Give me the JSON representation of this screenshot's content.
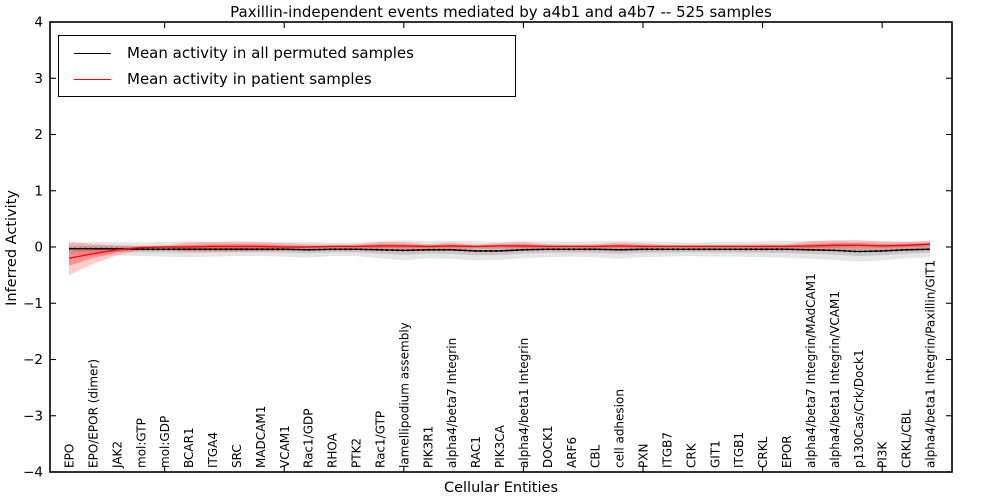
{
  "figure": {
    "title": "Paxillin-independent events mediated by a4b1 and a4b7 -- 525 samples",
    "xlabel": "Cellular Entities",
    "ylabel": "Inferred Activity",
    "legend": [
      {
        "label": "Mean activity in all permuted samples",
        "color": "#000000"
      },
      {
        "label": "Mean activity in patient samples",
        "color": "#ff0000"
      }
    ]
  },
  "chart_data": {
    "type": "line",
    "title": "Paxillin-independent events mediated by a4b1 and a4b7 -- 525 samples",
    "xlabel": "Cellular Entities",
    "ylabel": "Inferred Activity",
    "ylim": [
      -4,
      4
    ],
    "yticks": [
      4,
      3,
      2,
      1,
      0,
      -1,
      -2,
      -3,
      -4
    ],
    "ytick_labels": [
      "4",
      "3",
      "2",
      "1",
      "0",
      "−1",
      "−2",
      "−3",
      "−4"
    ],
    "xtick_indices": [
      4,
      9,
      14,
      19,
      24,
      29,
      34
    ],
    "grid": false,
    "legend_position": "upper left",
    "categories": [
      "EPO",
      "EPO/EPOR (dimer)",
      "JAK2",
      "mol:GTP",
      "mol:GDP",
      "BCAR1",
      "ITGA4",
      "SRC",
      "MADCAM1",
      "VCAM1",
      "Rac1/GDP",
      "RHOA",
      "PTK2",
      "Rac1/GTP",
      "lamellipodium assembly",
      "PIK3R1",
      "alpha4/beta7 Integrin",
      "RAC1",
      "PIK3CA",
      "alpha4/beta1 Integrin",
      "DOCK1",
      "ARF6",
      "CBL",
      "cell adhesion",
      "PXN",
      "ITGB7",
      "CRK",
      "GIT1",
      "ITGB1",
      "CRKL",
      "EPOR",
      "alpha4/beta7 Integrin/MAdCAM1",
      "alpha4/beta1 Integrin/VCAM1",
      "p130Cas/Crk/Dock1",
      "PI3K",
      "CRKL/CBL",
      "alpha4/beta1 Integrin/Paxillin/GIT1"
    ],
    "series": [
      {
        "name": "Mean activity in all permuted samples",
        "color": "#000000",
        "band_color": "#000000",
        "values": [
          -0.03,
          -0.03,
          -0.03,
          -0.04,
          -0.04,
          -0.04,
          -0.04,
          -0.04,
          -0.04,
          -0.04,
          -0.05,
          -0.04,
          -0.04,
          -0.05,
          -0.06,
          -0.05,
          -0.05,
          -0.07,
          -0.07,
          -0.05,
          -0.04,
          -0.04,
          -0.04,
          -0.05,
          -0.04,
          -0.04,
          -0.04,
          -0.04,
          -0.04,
          -0.04,
          -0.04,
          -0.05,
          -0.06,
          -0.08,
          -0.07,
          -0.05,
          -0.04
        ],
        "band_upper": [
          0.07,
          0.09,
          0.09,
          0.08,
          0.09,
          0.1,
          0.09,
          0.08,
          0.08,
          0.09,
          0.09,
          0.08,
          0.08,
          0.1,
          0.12,
          0.1,
          0.11,
          0.1,
          0.09,
          0.1,
          0.1,
          0.09,
          0.1,
          0.11,
          0.1,
          0.09,
          0.08,
          0.09,
          0.09,
          0.1,
          0.11,
          0.11,
          0.11,
          0.1,
          0.1,
          0.1,
          0.1
        ],
        "band_lower": [
          -0.13,
          -0.15,
          -0.15,
          -0.16,
          -0.17,
          -0.18,
          -0.17,
          -0.16,
          -0.16,
          -0.17,
          -0.19,
          -0.16,
          -0.16,
          -0.2,
          -0.24,
          -0.2,
          -0.21,
          -0.24,
          -0.23,
          -0.2,
          -0.18,
          -0.17,
          -0.18,
          -0.21,
          -0.18,
          -0.17,
          -0.16,
          -0.17,
          -0.17,
          -0.18,
          -0.19,
          -0.21,
          -0.23,
          -0.26,
          -0.24,
          -0.2,
          -0.18
        ]
      },
      {
        "name": "Mean activity in patient samples",
        "color": "#ff0000",
        "band_color": "#ff0000",
        "values": [
          -0.2,
          -0.12,
          -0.05,
          -0.01,
          0.0,
          0.0,
          0.01,
          0.01,
          0.01,
          0.0,
          0.0,
          0.01,
          0.01,
          0.02,
          0.02,
          0.01,
          0.02,
          0.01,
          0.02,
          0.02,
          0.01,
          0.01,
          0.01,
          0.02,
          0.01,
          0.01,
          0.01,
          0.01,
          0.01,
          0.01,
          0.01,
          0.02,
          0.03,
          0.03,
          0.02,
          0.03,
          0.05
        ],
        "band_upper": [
          0.1,
          0.05,
          0.03,
          0.02,
          0.03,
          0.08,
          0.09,
          0.1,
          0.09,
          0.07,
          0.05,
          0.04,
          0.05,
          0.09,
          0.09,
          0.05,
          0.08,
          0.04,
          0.07,
          0.09,
          0.05,
          0.04,
          0.05,
          0.08,
          0.06,
          0.04,
          0.04,
          0.04,
          0.04,
          0.05,
          0.05,
          0.1,
          0.12,
          0.12,
          0.1,
          0.09,
          0.11
        ],
        "band_lower": [
          -0.5,
          -0.3,
          -0.15,
          -0.05,
          -0.04,
          -0.08,
          -0.08,
          -0.08,
          -0.07,
          -0.06,
          -0.05,
          -0.03,
          -0.04,
          -0.06,
          -0.06,
          -0.04,
          -0.05,
          -0.03,
          -0.04,
          -0.06,
          -0.03,
          -0.02,
          -0.03,
          -0.05,
          -0.04,
          -0.02,
          -0.02,
          -0.02,
          -0.02,
          -0.03,
          -0.03,
          -0.07,
          -0.06,
          -0.05,
          -0.05,
          -0.04,
          -0.03
        ]
      }
    ]
  }
}
